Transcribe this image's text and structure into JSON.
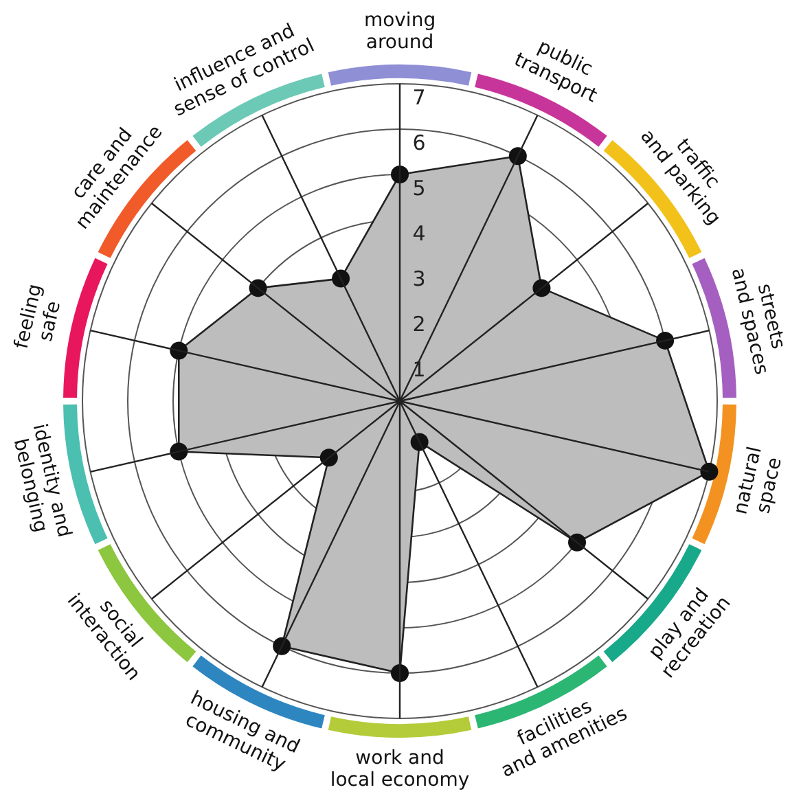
{
  "chart_data": {
    "type": "radar",
    "categories": [
      "moving around",
      "public transport",
      "traffic and parking",
      "streets and spaces",
      "natural space",
      "play and recreation",
      "facilities and amenities",
      "work and local economy",
      "housing and community",
      "social interaction",
      "identity and belonging",
      "feeling safe",
      "care and maintenance",
      "influence and sense of control"
    ],
    "series": [
      {
        "color": "#bdbdbd",
        "values": [
          5,
          6,
          4,
          6,
          7,
          5,
          1,
          6,
          6,
          2,
          5,
          5,
          4,
          3
        ]
      }
    ],
    "ylim": [
      0,
      7
    ],
    "yticks": [
      1,
      2,
      3,
      4,
      5,
      6,
      7
    ],
    "grid": true,
    "marker": "circle"
  }
}
